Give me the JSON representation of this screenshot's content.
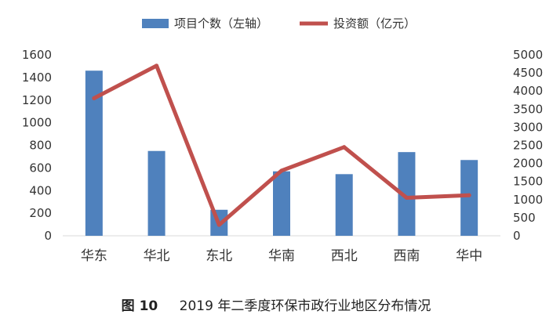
{
  "chart_data": {
    "type": "bar",
    "categories": [
      "华东",
      "华北",
      "东北",
      "华南",
      "西北",
      "西南",
      "华中"
    ],
    "series": [
      {
        "name": "项目个数（左轴）",
        "type": "bar",
        "axis": "left",
        "color": "#4F81BD",
        "values": [
          1460,
          750,
          230,
          570,
          545,
          740,
          670
        ]
      },
      {
        "name": "投资额（亿元）",
        "type": "line",
        "axis": "right",
        "color": "#C0504D",
        "values": [
          3800,
          4700,
          300,
          1800,
          2450,
          1050,
          1120
        ]
      }
    ],
    "left_axis": {
      "ylim": [
        0,
        1600
      ],
      "ticks": [
        "0",
        "200",
        "400",
        "600",
        "800",
        "1000",
        "1200",
        "1400",
        "1600"
      ]
    },
    "right_axis": {
      "ylim": [
        0,
        5000
      ],
      "ticks": [
        "0",
        "500",
        "1000",
        "1500",
        "2000",
        "2500",
        "3000",
        "3500",
        "4000",
        "4500",
        "5000"
      ]
    },
    "legend_placement": "top",
    "grid": false
  },
  "caption": {
    "label": "图 10",
    "text": "2019 年二季度环保市政行业地区分布情况"
  }
}
